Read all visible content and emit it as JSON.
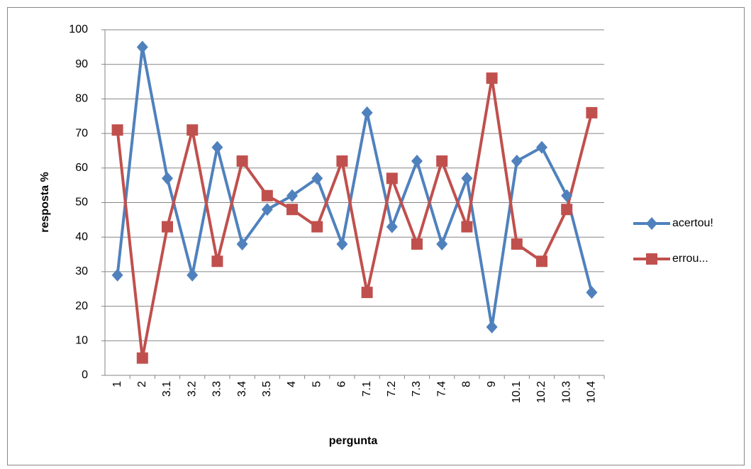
{
  "chart_data": {
    "type": "line",
    "x_label": "pergunta",
    "y_label": "resposta %",
    "categories": [
      "1",
      "2",
      "3.1",
      "3.2",
      "3.3",
      "3.4",
      "3.5",
      "4",
      "5",
      "6",
      "7.1",
      "7.2",
      "7.3",
      "7.4",
      "8",
      "9",
      "10.1",
      "10.2",
      "10.3",
      "10.4"
    ],
    "series": [
      {
        "name": "acertou!",
        "color": "#4f81bd",
        "marker": "diamond",
        "values": [
          29,
          95,
          57,
          29,
          66,
          38,
          48,
          52,
          57,
          38,
          76,
          43,
          62,
          38,
          57,
          14,
          62,
          66,
          52,
          24
        ]
      },
      {
        "name": "errou...",
        "color": "#c0504d",
        "marker": "square",
        "values": [
          71,
          5,
          43,
          71,
          33,
          62,
          52,
          48,
          43,
          62,
          24,
          57,
          38,
          62,
          43,
          86,
          38,
          33,
          48,
          76
        ]
      }
    ],
    "ylim": [
      0,
      100
    ],
    "yticks": [
      0,
      10,
      20,
      30,
      40,
      50,
      60,
      70,
      80,
      90,
      100
    ],
    "grid": true,
    "legend": "right"
  }
}
